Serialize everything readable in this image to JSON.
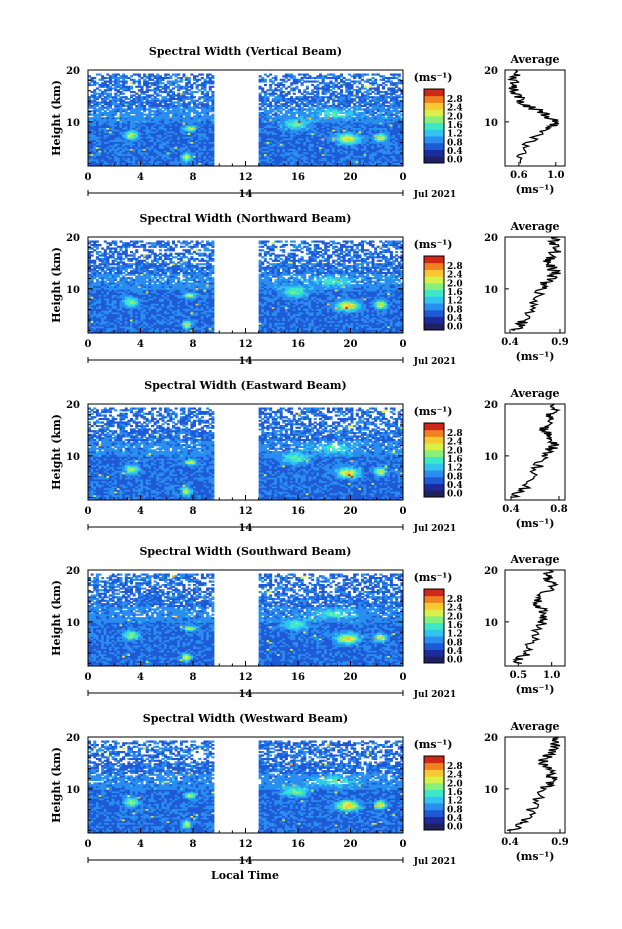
{
  "xlabel_bottom": "Local Time",
  "date_label": "Jul 2021",
  "date_day": "14",
  "colorbar": {
    "unit_label": "(ms⁻¹)",
    "ticks": [
      "0.0",
      "0.4",
      "0.8",
      "1.2",
      "1.6",
      "2.0",
      "2.4",
      "2.8"
    ]
  },
  "panels": [
    {
      "title": "Spectral Width (Vertical Beam)",
      "ylabel": "Height (km)",
      "avg_title": "Average",
      "avg_xlabel": "(ms⁻¹)",
      "avg_ticks": [
        "0.6",
        "1.0"
      ],
      "avg_range": [
        0.45,
        1.1
      ]
    },
    {
      "title": "Spectral Width (Northward Beam)",
      "ylabel": "Height (km)",
      "avg_title": "Average",
      "avg_xlabel": "(ms⁻¹)",
      "avg_ticks": [
        "0.4",
        "0.9"
      ],
      "avg_range": [
        0.35,
        0.95
      ]
    },
    {
      "title": "Spectral Width (Eastward Beam)",
      "ylabel": "Height (km)",
      "avg_title": "Average",
      "avg_xlabel": "(ms⁻¹)",
      "avg_ticks": [
        "0.4",
        "0.8"
      ],
      "avg_range": [
        0.35,
        0.85
      ]
    },
    {
      "title": "Spectral Width (Southward Beam)",
      "ylabel": "Height (km)",
      "avg_title": "Average",
      "avg_xlabel": "(ms⁻¹)",
      "avg_ticks": [
        "0.5",
        "1.0"
      ],
      "avg_range": [
        0.3,
        1.2
      ]
    },
    {
      "title": "Spectral Width (Westward Beam)",
      "ylabel": "Height (km)",
      "avg_title": "Average",
      "avg_xlabel": "(ms⁻¹)",
      "avg_ticks": [
        "0.4",
        "0.9"
      ],
      "avg_range": [
        0.35,
        0.95
      ]
    }
  ],
  "chart_data": {
    "type": "heatmap",
    "x_ticks": [
      "0",
      "4",
      "8",
      "12",
      "16",
      "20",
      "0"
    ],
    "xlim": [
      0,
      24
    ],
    "y_ticks": [
      "10",
      "20"
    ],
    "ylim": [
      1.5,
      20
    ],
    "data_gap_hours": [
      9.5,
      13
    ],
    "colorscale": [
      "#202060",
      "#1c2a9c",
      "#1f5ad6",
      "#2a8ef0",
      "#32c4f0",
      "#3ce8c8",
      "#88f07a",
      "#d8f048",
      "#f8c830",
      "#f08020",
      "#d02818"
    ],
    "clim": [
      0,
      2.8
    ],
    "average_profiles": [
      {
        "beam": "Vertical",
        "height": [
          2,
          4,
          6,
          8,
          9,
          10,
          11,
          12,
          13,
          14,
          15,
          16,
          17,
          18,
          19,
          20
        ],
        "value": [
          0.6,
          0.62,
          0.7,
          0.82,
          0.95,
          1.0,
          0.9,
          0.85,
          0.7,
          0.62,
          0.58,
          0.55,
          0.55,
          0.56,
          0.55,
          0.58
        ]
      },
      {
        "beam": "Northward",
        "height": [
          2,
          3,
          4,
          6,
          8,
          10,
          11,
          12,
          13,
          14,
          15,
          16,
          17,
          18,
          19,
          20
        ],
        "value": [
          0.45,
          0.5,
          0.55,
          0.6,
          0.68,
          0.72,
          0.75,
          0.8,
          0.85,
          0.82,
          0.78,
          0.8,
          0.85,
          0.86,
          0.84,
          0.88
        ]
      },
      {
        "beam": "Eastward",
        "height": [
          2,
          3,
          4,
          6,
          8,
          10,
          11,
          12,
          13,
          14,
          15,
          16,
          17,
          18,
          19,
          20
        ],
        "value": [
          0.42,
          0.47,
          0.52,
          0.57,
          0.63,
          0.68,
          0.72,
          0.76,
          0.73,
          0.7,
          0.68,
          0.7,
          0.72,
          0.74,
          0.75,
          0.76
        ]
      },
      {
        "beam": "Southward",
        "height": [
          2,
          3,
          4,
          6,
          8,
          10,
          11,
          12,
          13,
          14,
          15,
          16,
          17,
          18,
          19,
          20
        ],
        "value": [
          0.48,
          0.55,
          0.6,
          0.68,
          0.78,
          0.85,
          0.9,
          0.88,
          0.8,
          0.78,
          0.85,
          0.95,
          1.0,
          0.98,
          0.92,
          0.95
        ]
      },
      {
        "beam": "Westward",
        "height": [
          2,
          3,
          4,
          6,
          8,
          10,
          11,
          12,
          13,
          14,
          15,
          16,
          17,
          18,
          19,
          20
        ],
        "value": [
          0.42,
          0.5,
          0.55,
          0.62,
          0.68,
          0.75,
          0.8,
          0.82,
          0.8,
          0.76,
          0.72,
          0.76,
          0.82,
          0.85,
          0.86,
          0.88
        ]
      }
    ]
  }
}
